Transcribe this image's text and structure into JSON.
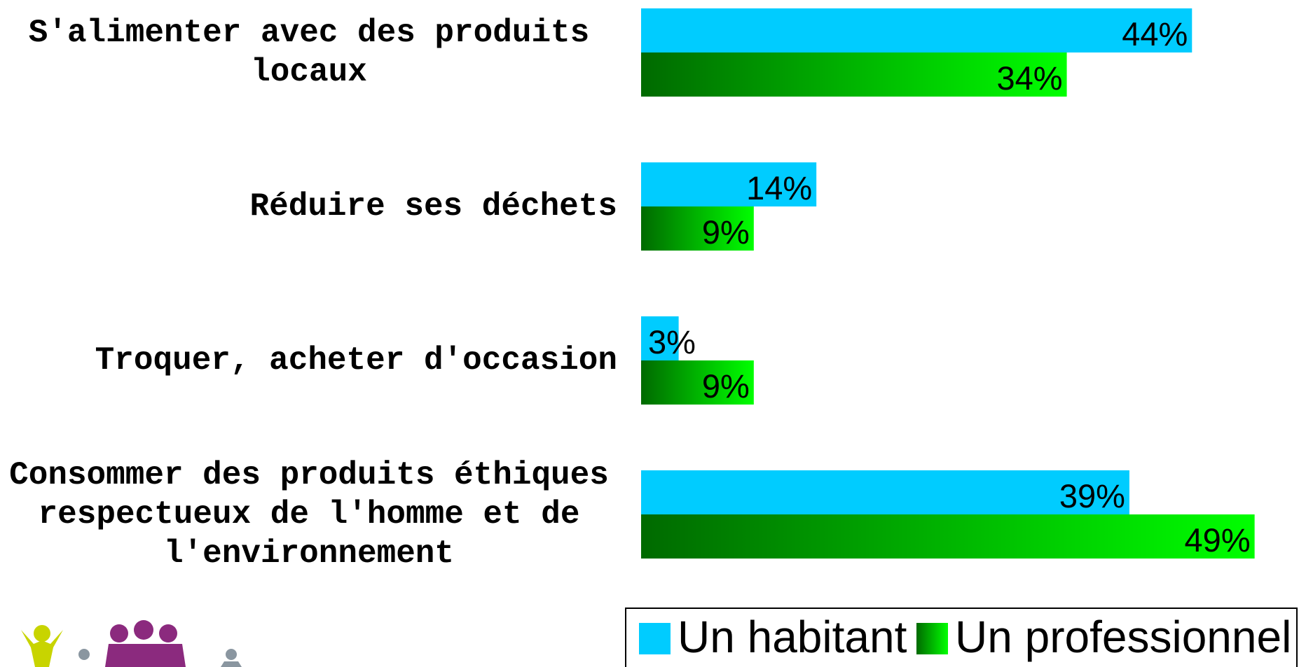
{
  "chart_data": {
    "type": "barh",
    "categories": [
      "S'alimenter avec des produits locaux",
      "Réduire ses déchets",
      "Troquer, acheter d'occasion",
      "Consommer des produits éthiques respectueux de l'homme et de l'environnement"
    ],
    "series": [
      {
        "name": "Un habitant",
        "color": "#00ccff",
        "values": [
          44,
          14,
          3,
          39
        ],
        "value_labels": [
          "44%",
          "14%",
          "3%",
          "39%"
        ]
      },
      {
        "name": "Un professionnel",
        "color": "#00ff00",
        "values": [
          34,
          9,
          9,
          49
        ],
        "value_labels": [
          "34%",
          "9%",
          "9%",
          "49%"
        ]
      }
    ],
    "legend": "bottom-right"
  }
}
